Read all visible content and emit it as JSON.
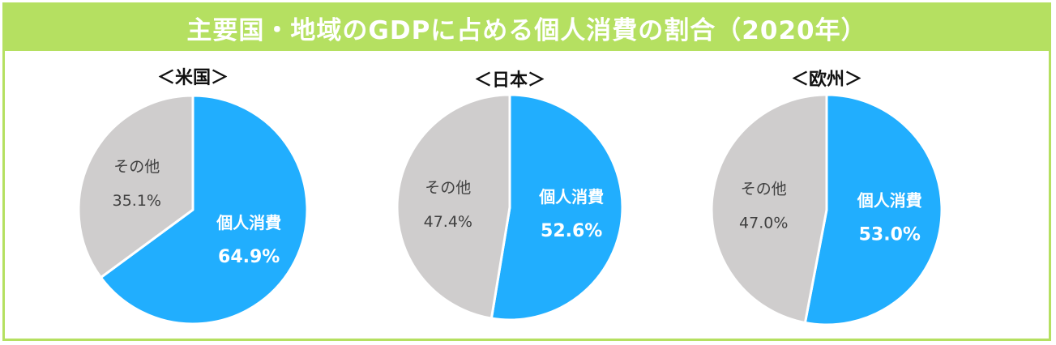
{
  "title": "主要国・地域のGDPに占める個人消費の割合（2020年）",
  "colors": {
    "frame": "#b5e061",
    "consumption": "#21aefe",
    "other": "#cfcdcd",
    "consumption_text": "#ffffff",
    "other_text": "#404040"
  },
  "chart_data": [
    {
      "type": "pie",
      "title": "＜米国＞",
      "slices": [
        {
          "label": "個人消費",
          "value": 64.9,
          "display": "64.9%",
          "color": "#21aefe"
        },
        {
          "label": "その他",
          "value": 35.1,
          "display": "35.1%",
          "color": "#cfcdcd"
        }
      ]
    },
    {
      "type": "pie",
      "title": "＜日本＞",
      "slices": [
        {
          "label": "個人消費",
          "value": 52.6,
          "display": "52.6%",
          "color": "#21aefe"
        },
        {
          "label": "その他",
          "value": 47.4,
          "display": "47.4%",
          "color": "#cfcdcd"
        }
      ]
    },
    {
      "type": "pie",
      "title": "＜欧州＞",
      "slices": [
        {
          "label": "個人消費",
          "value": 53.0,
          "display": "53.0%",
          "color": "#21aefe"
        },
        {
          "label": "その他",
          "value": 47.0,
          "display": "47.0%",
          "color": "#cfcdcd"
        }
      ]
    }
  ]
}
